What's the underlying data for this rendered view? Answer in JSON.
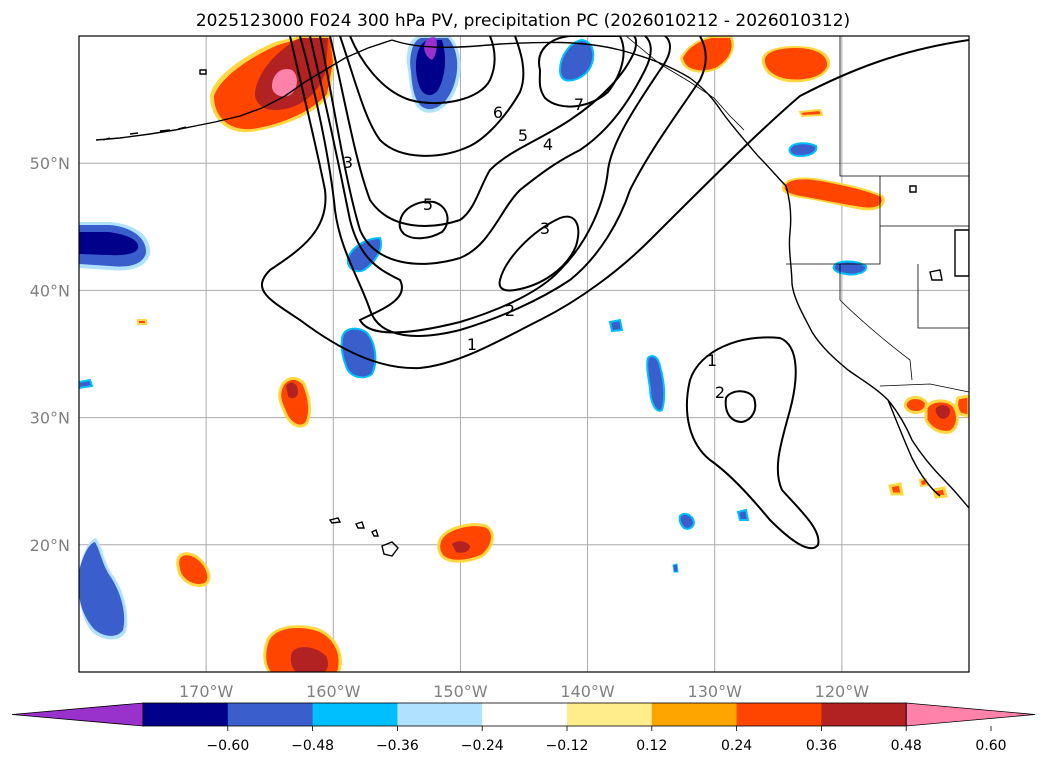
{
  "title": "2025123000 F024 300 hPa PV, precipitation PC (2026010212 - 2026010312)",
  "lon_ticks": [
    {
      "label": "170°W",
      "lon": -170
    },
    {
      "label": "160°W",
      "lon": -160
    },
    {
      "label": "150°W",
      "lon": -150
    },
    {
      "label": "140°W",
      "lon": -140
    },
    {
      "label": "130°W",
      "lon": -130
    },
    {
      "label": "120°W",
      "lon": -120
    }
  ],
  "lat_ticks": [
    {
      "label": "50°N",
      "lat": 50
    },
    {
      "label": "40°N",
      "lat": 40
    },
    {
      "label": "30°N",
      "lat": 30
    },
    {
      "label": "20°N",
      "lat": 20
    }
  ],
  "map_extent": {
    "lon_min": -180,
    "lon_max": -110,
    "lat_min": 10,
    "lat_max": 60
  },
  "colorbar": {
    "ticks": [
      "−0.60",
      "−0.48",
      "−0.36",
      "−0.24",
      "−0.12",
      "0.12",
      "0.24",
      "0.36",
      "0.48",
      "0.60"
    ],
    "colors": [
      "#9932cc",
      "#00008b",
      "#3a5fcd",
      "#00bfff",
      "#b0e2ff",
      "#ffffff",
      "#ffec8b",
      "#ffa500",
      "#ff4500",
      "#b22222",
      "#ff82ab"
    ]
  },
  "pv_contour_labels": [
    "7",
    "6",
    "5",
    "4",
    "3",
    "5",
    "3",
    "2",
    "1",
    "1",
    "2"
  ]
}
